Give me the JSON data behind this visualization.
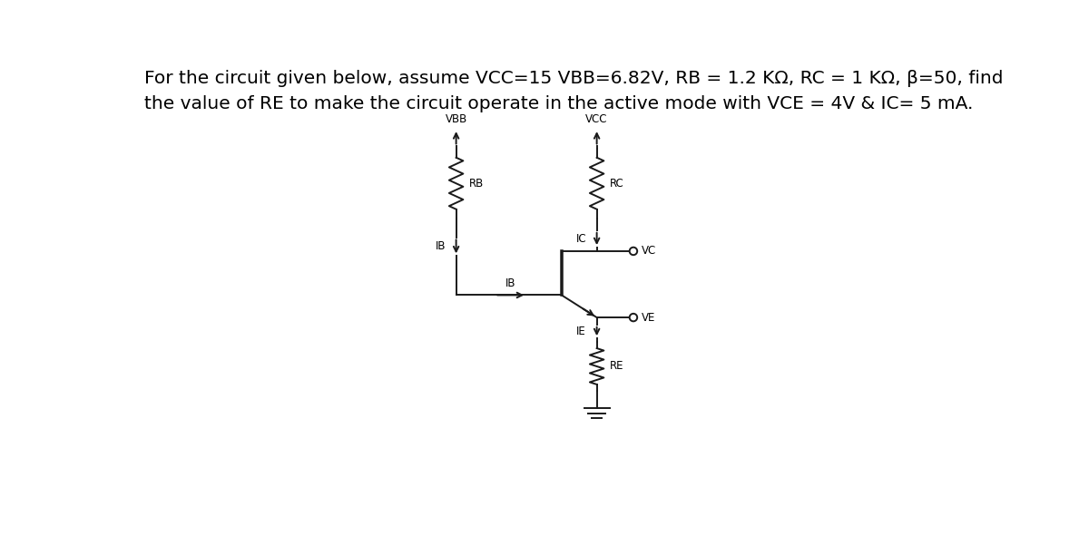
{
  "title_line1": "For the circuit given below, assume VCC=15 VBB=6.82V, RB = 1.2 KΩ, RC = 1 KΩ, β=50, find",
  "title_line2": "the value of RE to make the circuit operate in the active mode with VCE = 4V & IC= 5 mA.",
  "bg_color": "#ffffff",
  "text_color": "#000000",
  "circuit_color": "#1a1a1a",
  "label_VBB": "VBB",
  "label_VCC": "VCC",
  "label_RB": "RB",
  "label_RC": "RC",
  "label_IB_left": "IB",
  "label_IB_base": "IB",
  "label_IC": "IC",
  "label_IE": "IE",
  "label_VC": "VC",
  "label_VE": "VE",
  "label_RE": "RE",
  "font_size_title": 14.5,
  "font_size_label": 8.5
}
